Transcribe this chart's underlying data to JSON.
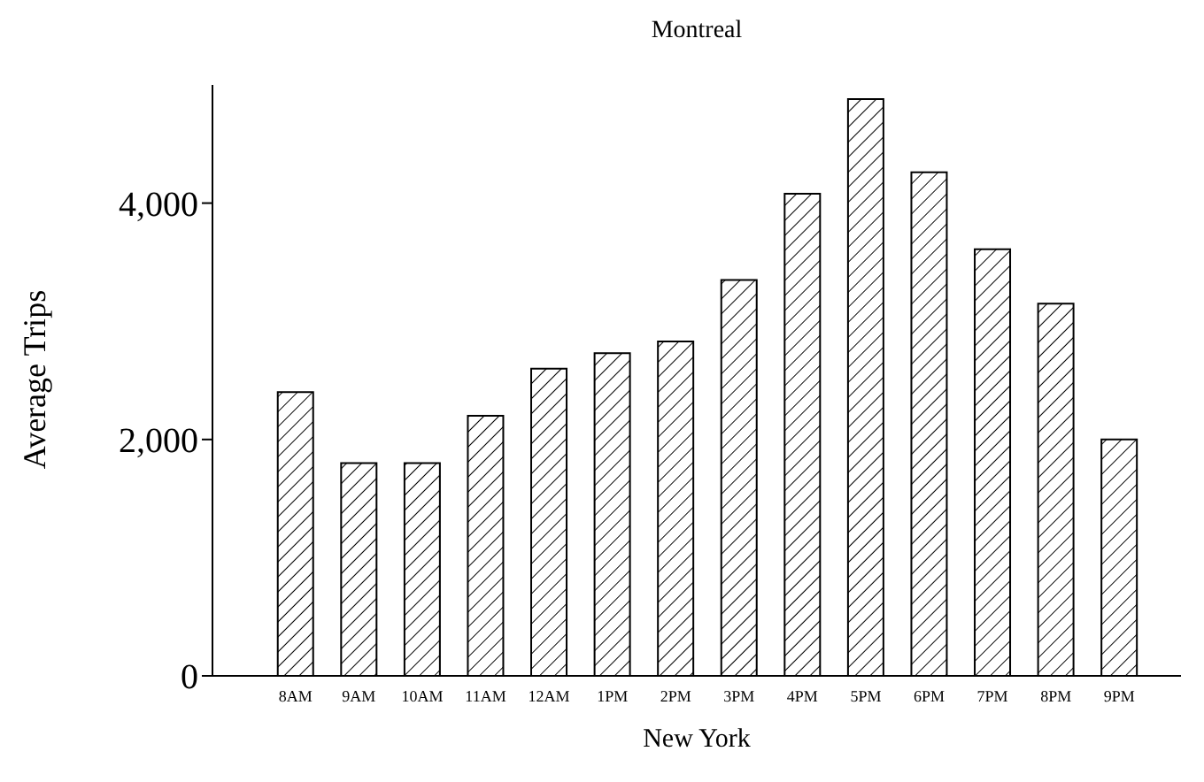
{
  "chart_data": {
    "type": "bar",
    "title": "Montreal",
    "xlabel": "New York",
    "ylabel": "Average Trips",
    "categories": [
      "8AM",
      "9AM",
      "10AM",
      "11AM",
      "12AM",
      "1PM",
      "2PM",
      "3PM",
      "4PM",
      "5PM",
      "6PM",
      "7PM",
      "8PM",
      "9PM"
    ],
    "values": [
      2400,
      1800,
      1800,
      2200,
      2600,
      2730,
      2830,
      3350,
      4080,
      4880,
      4260,
      3610,
      3150,
      2000
    ],
    "color": "#000000",
    "ylim": [
      0,
      5000
    ],
    "yticks": [
      {
        "value": 0,
        "label": "0"
      },
      {
        "value": 2000,
        "label": "2,000"
      },
      {
        "value": 4000,
        "label": "4,000"
      }
    ],
    "grid": false,
    "legend": false
  }
}
